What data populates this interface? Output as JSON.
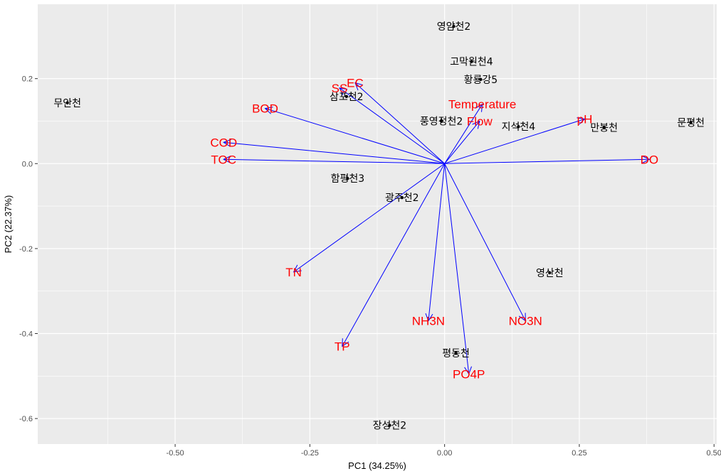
{
  "chart_data": {
    "type": "scatter",
    "subtype": "pca-biplot",
    "xlabel": "PC1 (34.25%)",
    "ylabel": "PC2 (22.37%)",
    "xlim": [
      -0.755,
      0.505
    ],
    "ylim": [
      -0.66,
      0.375
    ],
    "x_ticks": [
      -0.5,
      -0.25,
      0.0,
      0.25,
      0.5
    ],
    "x_tick_labels": [
      "-0.50",
      "-0.25",
      "0.00",
      "0.25",
      "0.50"
    ],
    "y_ticks": [
      0.2,
      0.0,
      -0.2,
      -0.4,
      -0.6
    ],
    "y_tick_labels": [
      "0.2",
      "0.0",
      "-0.2",
      "-0.4",
      "-0.6"
    ],
    "grid": true,
    "background": "#ebebeb",
    "point_color": "#000000",
    "arrow_color": "#0000ff",
    "variable_label_color": "#ff0000",
    "points": [
      {
        "label": "무안천",
        "x": -0.7,
        "y": 0.143
      },
      {
        "label": "영암천2",
        "x": 0.017,
        "y": 0.323
      },
      {
        "label": "고막원천4",
        "x": 0.05,
        "y": 0.24
      },
      {
        "label": "황룡강5",
        "x": 0.067,
        "y": 0.198
      },
      {
        "label": "삼포천2",
        "x": -0.182,
        "y": 0.158
      },
      {
        "label": "풍영정천2",
        "x": -0.006,
        "y": 0.1
      },
      {
        "label": "지석천4",
        "x": 0.137,
        "y": 0.087
      },
      {
        "label": "만봉천",
        "x": 0.296,
        "y": 0.085
      },
      {
        "label": "문평천",
        "x": 0.457,
        "y": 0.097
      },
      {
        "label": "함평천3",
        "x": -0.18,
        "y": -0.035
      },
      {
        "label": "광주천2",
        "x": -0.079,
        "y": -0.08
      },
      {
        "label": "영산천",
        "x": 0.195,
        "y": -0.257
      },
      {
        "label": "평동천",
        "x": 0.021,
        "y": -0.446
      },
      {
        "label": "장성천2",
        "x": -0.102,
        "y": -0.616
      }
    ],
    "loadings": [
      {
        "name": "SS",
        "x": -0.195,
        "y": 0.178
      },
      {
        "name": "EC",
        "x": -0.166,
        "y": 0.19
      },
      {
        "name": "BOD",
        "x": -0.333,
        "y": 0.13
      },
      {
        "name": "COD",
        "x": -0.41,
        "y": 0.05
      },
      {
        "name": "TOC",
        "x": -0.41,
        "y": 0.01
      },
      {
        "name": "Temperature",
        "x": 0.07,
        "y": 0.14
      },
      {
        "name": "Flow",
        "x": 0.065,
        "y": 0.1
      },
      {
        "name": "pH",
        "x": 0.26,
        "y": 0.105
      },
      {
        "name": "DO",
        "x": 0.38,
        "y": 0.01
      },
      {
        "name": "TN",
        "x": -0.28,
        "y": -0.255
      },
      {
        "name": "NH3N",
        "x": -0.03,
        "y": -0.37
      },
      {
        "name": "NO3N",
        "x": 0.15,
        "y": -0.37
      },
      {
        "name": "TP",
        "x": -0.19,
        "y": -0.43
      },
      {
        "name": "PO4P",
        "x": 0.045,
        "y": -0.495
      }
    ]
  }
}
